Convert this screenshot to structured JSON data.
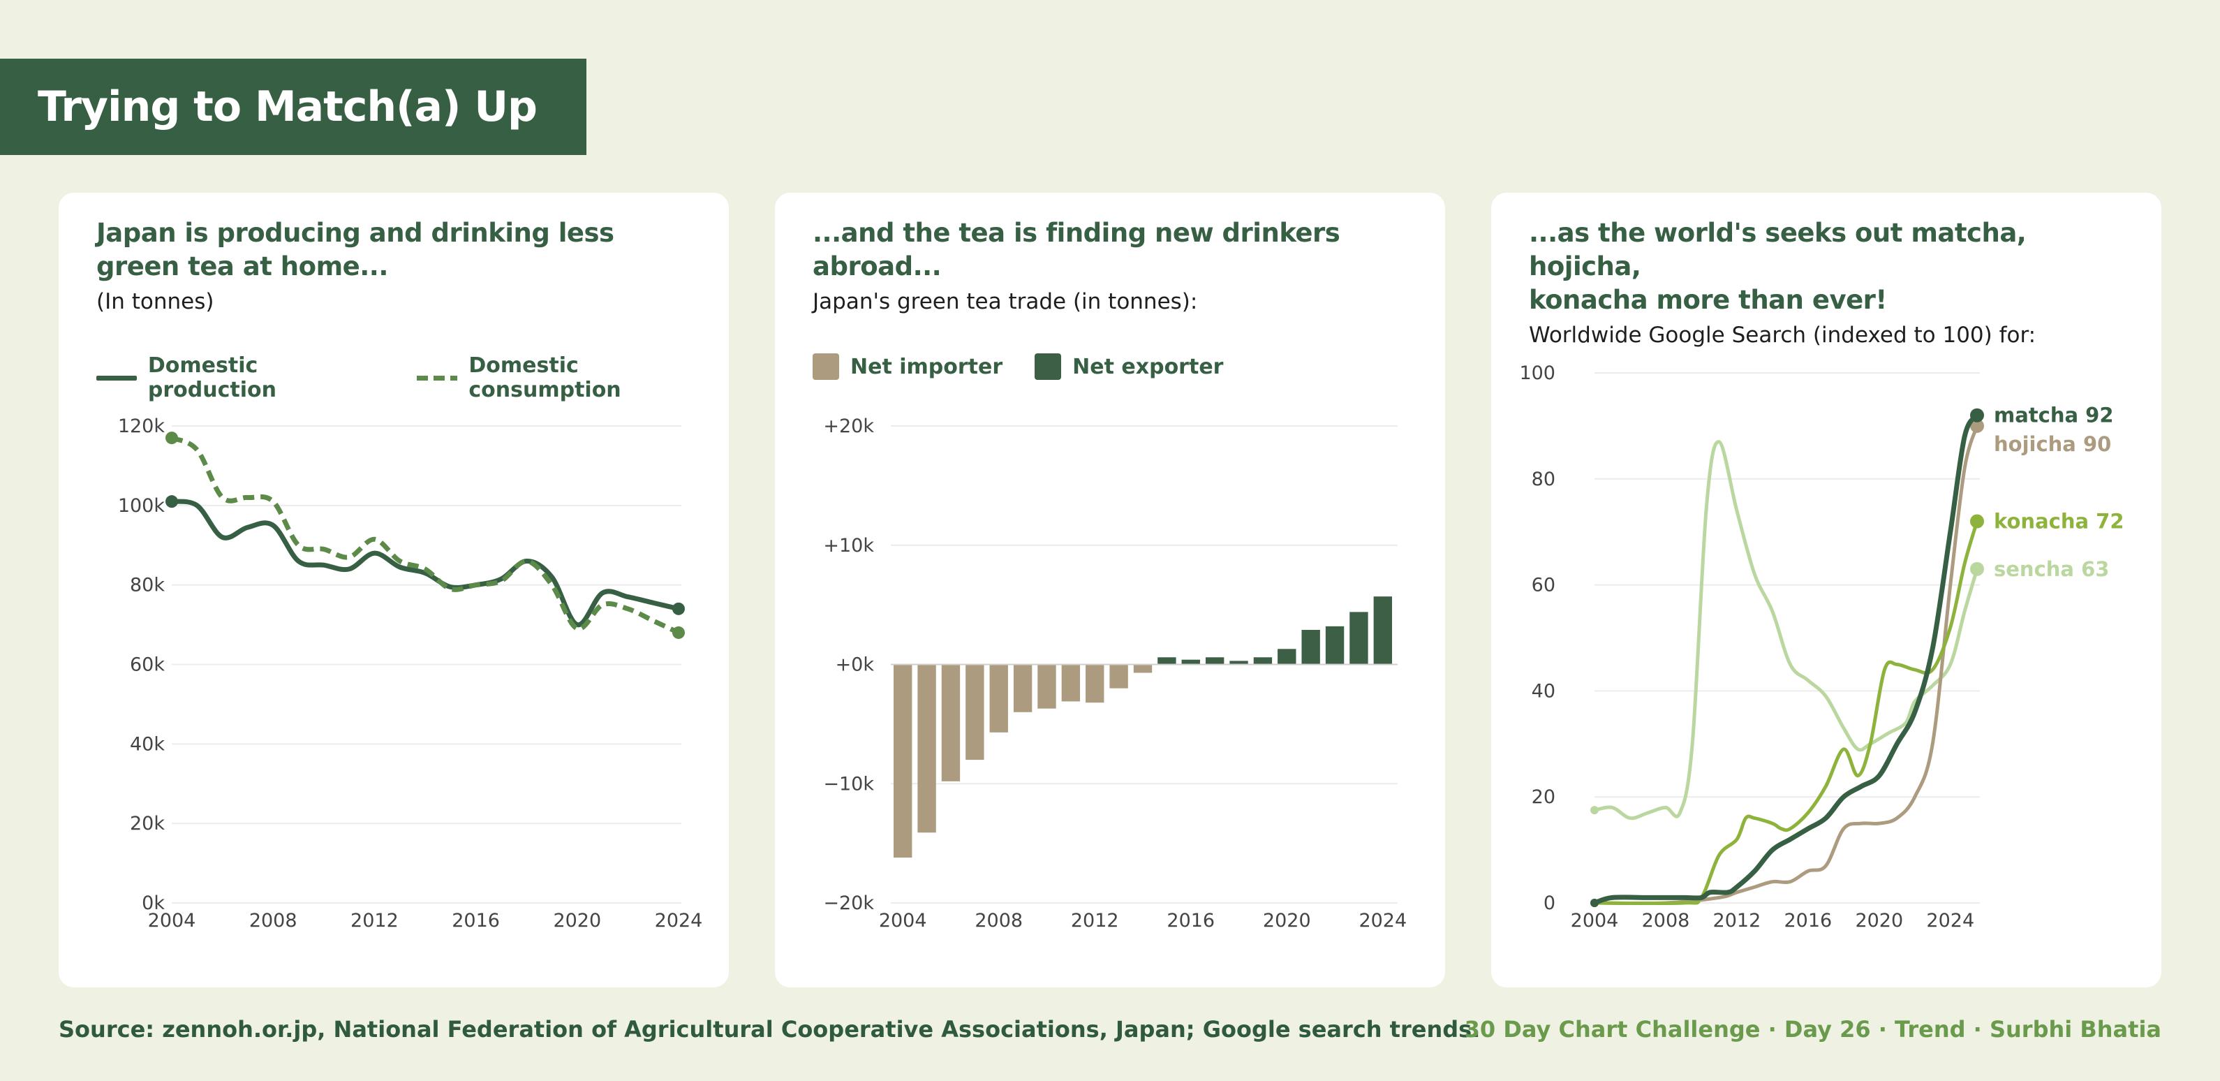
{
  "header": {
    "title": "Trying to Match(a) Up"
  },
  "colors": {
    "dark_green": "#365f43",
    "mid_green": "#5c8a48",
    "tan": "#ad9b80",
    "lime": "#8eb33c",
    "pale_green": "#bad7a0",
    "background": "#eff2e2"
  },
  "panels": [
    {
      "title_line1": "Japan is producing and drinking less",
      "title_line2": "green tea at home...",
      "subtitle": "(In tonnes)"
    },
    {
      "title_line1": "...and the tea is finding new drinkers abroad...",
      "subtitle": "Japan's green tea trade (in tonnes):"
    },
    {
      "title_line1": "...as the world's seeks out matcha, hojicha,",
      "title_line2": "konacha more than ever!",
      "subtitle": "Worldwide Google Search (indexed to 100) for:"
    }
  ],
  "chart_data": [
    {
      "type": "line",
      "legend": [
        "Domestic production",
        "Domestic consumption"
      ],
      "x": [
        2004,
        2005,
        2006,
        2007,
        2008,
        2009,
        2010,
        2011,
        2012,
        2013,
        2014,
        2015,
        2016,
        2017,
        2018,
        2019,
        2020,
        2021,
        2022,
        2023,
        2024
      ],
      "series": [
        {
          "name": "Domestic production",
          "style": "solid",
          "color": "#365f43",
          "values": [
            101000,
            100000,
            92000,
            94500,
            95000,
            86000,
            85000,
            84000,
            88000,
            84500,
            83000,
            79500,
            80000,
            81500,
            86000,
            82000,
            70000,
            78000,
            77000,
            75500,
            74000
          ]
        },
        {
          "name": "Domestic consumption",
          "style": "dashed",
          "color": "#5c8a48",
          "values": [
            117000,
            114000,
            102000,
            102000,
            101000,
            90000,
            89000,
            87000,
            91500,
            86000,
            84000,
            79000,
            80000,
            81000,
            86000,
            80000,
            69000,
            75000,
            74000,
            71000,
            68000
          ]
        }
      ],
      "xticks": [
        2004,
        2008,
        2012,
        2016,
        2020,
        2024
      ],
      "yticks": [
        0,
        20000,
        40000,
        60000,
        80000,
        100000,
        120000
      ],
      "ytick_labels": [
        "0k",
        "20k",
        "40k",
        "60k",
        "80k",
        "100k",
        "120k"
      ],
      "ylim": [
        0,
        120000
      ],
      "grid": true
    },
    {
      "type": "bar",
      "legend": [
        "Net importer",
        "Net exporter"
      ],
      "categories": [
        2004,
        2005,
        2006,
        2007,
        2008,
        2009,
        2010,
        2011,
        2012,
        2013,
        2014,
        2015,
        2016,
        2017,
        2018,
        2019,
        2020,
        2021,
        2022,
        2023,
        2024
      ],
      "values": [
        -16200,
        -14100,
        -9800,
        -8000,
        -5700,
        -4000,
        -3700,
        -3100,
        -3200,
        -2000,
        -700,
        600,
        400,
        600,
        300,
        600,
        1300,
        2900,
        3200,
        4400,
        5700
      ],
      "xticks": [
        2004,
        2008,
        2012,
        2016,
        2020,
        2024
      ],
      "yticks": [
        -20000,
        -10000,
        0,
        10000,
        20000
      ],
      "ytick_labels": [
        "−20k",
        "−10k",
        "+0k",
        "+10k",
        "+20k"
      ],
      "ylim": [
        -20000,
        20000
      ],
      "grid": true
    },
    {
      "type": "line",
      "x_start": 2004,
      "x_end": 2025.5,
      "series": [
        {
          "name": "matcha",
          "label": "matcha 92",
          "color": "#365f43",
          "width": 7,
          "points": [
            [
              2004,
              0
            ],
            [
              2005,
              1
            ],
            [
              2007,
              1
            ],
            [
              2009,
              1
            ],
            [
              2010,
              1
            ],
            [
              2010.5,
              2
            ],
            [
              2011.5,
              2
            ],
            [
              2012,
              3
            ],
            [
              2013,
              6
            ],
            [
              2014,
              10
            ],
            [
              2015,
              12
            ],
            [
              2016,
              14
            ],
            [
              2017,
              16
            ],
            [
              2018,
              20
            ],
            [
              2019,
              22
            ],
            [
              2020,
              24
            ],
            [
              2021,
              30
            ],
            [
              2022,
              36
            ],
            [
              2023,
              48
            ],
            [
              2024,
              70
            ],
            [
              2024.8,
              88
            ],
            [
              2025.5,
              92
            ]
          ]
        },
        {
          "name": "hojicha",
          "label": "hojicha 90",
          "color": "#ad9b80",
          "width": 5,
          "points": [
            [
              2004,
              0
            ],
            [
              2008,
              0
            ],
            [
              2011,
              1
            ],
            [
              2012,
              2
            ],
            [
              2013,
              3
            ],
            [
              2014,
              4
            ],
            [
              2015,
              4
            ],
            [
              2016,
              6
            ],
            [
              2017,
              7
            ],
            [
              2018,
              14
            ],
            [
              2019,
              15
            ],
            [
              2020,
              15
            ],
            [
              2021,
              16
            ],
            [
              2022,
              20
            ],
            [
              2023,
              30
            ],
            [
              2024,
              60
            ],
            [
              2024.8,
              82
            ],
            [
              2025.5,
              90
            ]
          ]
        },
        {
          "name": "konacha",
          "label": "konacha 72",
          "color": "#8eb33c",
          "width": 5,
          "points": [
            [
              2004,
              0
            ],
            [
              2009,
              0
            ],
            [
              2010,
              1
            ],
            [
              2011,
              9
            ],
            [
              2012,
              12
            ],
            [
              2012.5,
              16
            ],
            [
              2013,
              16
            ],
            [
              2014,
              15
            ],
            [
              2014.5,
              14
            ],
            [
              2015,
              14
            ],
            [
              2016,
              17
            ],
            [
              2017,
              22
            ],
            [
              2018,
              29
            ],
            [
              2018.8,
              24
            ],
            [
              2019.5,
              30
            ],
            [
              2020.3,
              44
            ],
            [
              2021,
              45
            ],
            [
              2022,
              44
            ],
            [
              2023,
              44
            ],
            [
              2024,
              52
            ],
            [
              2024.8,
              64
            ],
            [
              2025.5,
              72
            ]
          ]
        },
        {
          "name": "sencha",
          "label": "sencha 63",
          "color": "#bad7a0",
          "width": 5,
          "points": [
            [
              2004,
              17.5
            ],
            [
              2005,
              18
            ],
            [
              2006,
              16
            ],
            [
              2007,
              17
            ],
            [
              2008,
              18
            ],
            [
              2008.8,
              17
            ],
            [
              2009.5,
              30
            ],
            [
              2010.3,
              75
            ],
            [
              2011,
              87
            ],
            [
              2012,
              74
            ],
            [
              2013,
              62
            ],
            [
              2014,
              55
            ],
            [
              2015,
              45
            ],
            [
              2016,
              42
            ],
            [
              2017,
              39
            ],
            [
              2018,
              33
            ],
            [
              2018.8,
              29
            ],
            [
              2019.5,
              30
            ],
            [
              2020.5,
              32
            ],
            [
              2021.5,
              34
            ],
            [
              2022,
              38
            ],
            [
              2023,
              41
            ],
            [
              2024,
              45
            ],
            [
              2024.8,
              55
            ],
            [
              2025.5,
              63
            ]
          ]
        }
      ],
      "xticks": [
        2004,
        2008,
        2012,
        2016,
        2020,
        2024
      ],
      "yticks": [
        0,
        20,
        40,
        60,
        80,
        100
      ],
      "ylim": [
        0,
        100
      ],
      "grid": true
    }
  ],
  "footer": {
    "source": "Source: zennoh.or.jp, National Federation of Agricultural Cooperative Associations, Japan; Google search trends.",
    "credit": "30 Day Chart Challenge · Day 26 · Trend · Surbhi Bhatia"
  }
}
